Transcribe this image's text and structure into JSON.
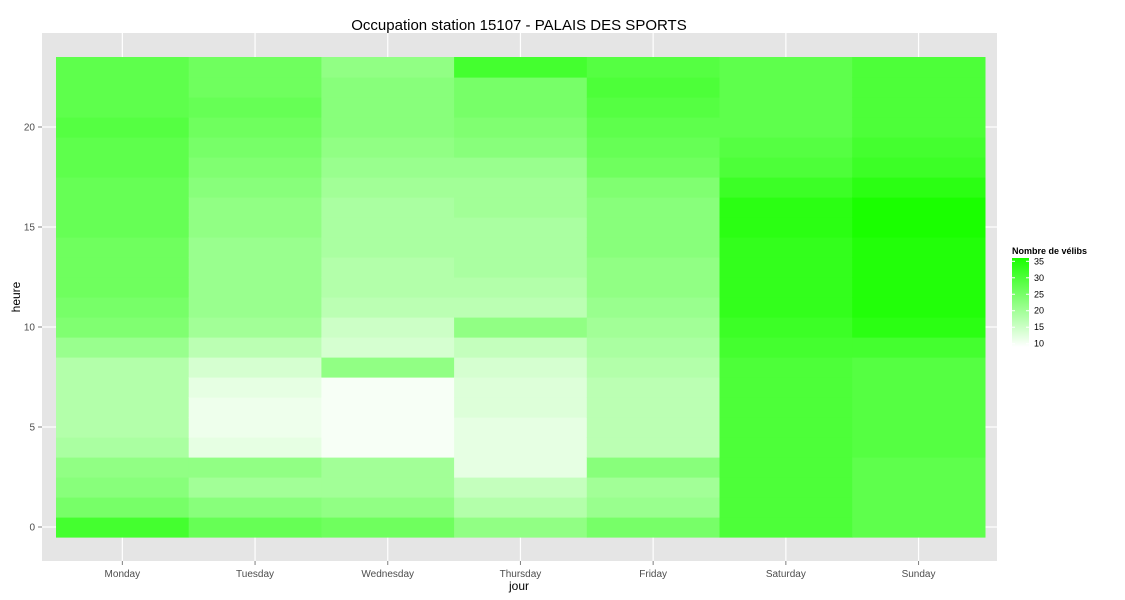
{
  "chart_data": {
    "type": "heatmap",
    "title": "Occupation station 15107 -  PALAIS DES SPORTS",
    "xlabel": "jour",
    "ylabel": "heure",
    "x_categories": [
      "Monday",
      "Tuesday",
      "Wednesday",
      "Thursday",
      "Friday",
      "Saturday",
      "Sunday"
    ],
    "y_values": [
      0,
      1,
      2,
      3,
      4,
      5,
      6,
      7,
      8,
      9,
      10,
      11,
      12,
      13,
      14,
      15,
      16,
      17,
      18,
      19,
      20,
      21,
      22,
      23
    ],
    "y_ticks": [
      0,
      5,
      10,
      15,
      20
    ],
    "ylim": [
      -0.5,
      23.5
    ],
    "legend": {
      "title": "Nombre de vélibs",
      "ticks": [
        35,
        30,
        25,
        20,
        15,
        10
      ],
      "range": [
        9,
        36
      ],
      "low_color": "#ffffff",
      "high_color": "#1aff00",
      "placement": "right"
    },
    "grid": true,
    "panel_color": "#e5e5e5",
    "values_by_day": {
      "Monday": [
        31,
        25,
        23,
        22,
        19,
        18,
        18,
        18,
        18,
        21,
        24,
        25,
        26,
        26,
        26,
        27,
        27,
        27,
        28,
        28,
        29,
        28,
        28,
        28
      ],
      "Tuesday": [
        27,
        23,
        20,
        22,
        12,
        11,
        11,
        12,
        14,
        17,
        20,
        21,
        21,
        21,
        21,
        22,
        22,
        23,
        24,
        25,
        26,
        27,
        26,
        26
      ],
      "Wednesday": [
        26,
        22,
        20,
        20,
        10,
        10,
        10,
        10,
        22,
        14,
        15,
        17,
        18,
        18,
        19,
        19,
        19,
        20,
        21,
        22,
        23,
        23,
        23,
        22
      ],
      "Thursday": [
        22,
        18,
        16,
        12,
        12,
        12,
        13,
        13,
        14,
        16,
        22,
        17,
        18,
        19,
        19,
        19,
        20,
        20,
        21,
        23,
        24,
        25,
        25,
        31
      ],
      "Friday": [
        25,
        21,
        20,
        23,
        17,
        17,
        17,
        17,
        18,
        19,
        20,
        21,
        22,
        22,
        23,
        23,
        23,
        24,
        26,
        27,
        28,
        29,
        30,
        29
      ],
      "Saturday": [
        30,
        30,
        30,
        30,
        30,
        30,
        30,
        30,
        30,
        31,
        32,
        33,
        33,
        33,
        33,
        34,
        34,
        32,
        30,
        29,
        28,
        28,
        28,
        28
      ],
      "Sunday": [
        28,
        28,
        28,
        28,
        29,
        29,
        29,
        29,
        29,
        31,
        34,
        35,
        35,
        35,
        35,
        36,
        36,
        34,
        32,
        31,
        30,
        30,
        30,
        30
      ]
    }
  }
}
